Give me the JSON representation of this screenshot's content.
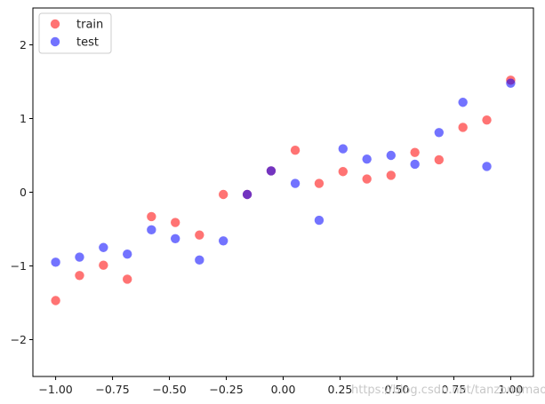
{
  "chart_data": {
    "type": "scatter",
    "title": "",
    "xlabel": "",
    "ylabel": "",
    "xlim": [
      -1.1,
      1.1
    ],
    "ylim": [
      -2.5,
      2.5
    ],
    "xticks": [
      -1.0,
      -0.75,
      -0.5,
      -0.25,
      0.0,
      0.25,
      0.5,
      0.75,
      1.0
    ],
    "xtick_labels": [
      "−1.00",
      "−0.75",
      "−0.50",
      "−0.25",
      "0.00",
      "0.25",
      "0.50",
      "0.75",
      "1.00"
    ],
    "yticks": [
      -2,
      -1,
      0,
      1,
      2
    ],
    "ytick_labels": [
      "−2",
      "−1",
      "0",
      "1",
      "2"
    ],
    "grid": false,
    "legend_position": "upper-left",
    "series": [
      {
        "name": "train",
        "color": "#ff0000",
        "alpha": 0.55,
        "x": [
          -1.0,
          -0.895,
          -0.79,
          -0.685,
          -0.579,
          -0.474,
          -0.368,
          -0.263,
          -0.158,
          -0.053,
          0.053,
          0.158,
          0.263,
          0.368,
          0.474,
          0.579,
          0.685,
          0.79,
          0.895,
          1.0
        ],
        "y": [
          -1.47,
          -1.13,
          -0.99,
          -1.18,
          -0.33,
          -0.41,
          -0.58,
          -0.03,
          -0.03,
          0.29,
          0.57,
          0.12,
          0.28,
          0.18,
          0.23,
          0.54,
          0.44,
          0.88,
          0.98,
          1.52
        ]
      },
      {
        "name": "test",
        "color": "#0000ff",
        "alpha": 0.55,
        "x": [
          -1.0,
          -0.895,
          -0.79,
          -0.685,
          -0.579,
          -0.474,
          -0.368,
          -0.263,
          -0.158,
          -0.053,
          0.053,
          0.158,
          0.263,
          0.368,
          0.474,
          0.579,
          0.685,
          0.79,
          0.895,
          1.0
        ],
        "y": [
          -0.95,
          -0.88,
          -0.75,
          -0.84,
          -0.51,
          -0.63,
          -0.92,
          -0.66,
          -0.03,
          0.29,
          0.12,
          -0.38,
          0.59,
          0.45,
          0.5,
          0.38,
          0.81,
          1.22,
          0.35,
          1.48
        ]
      }
    ],
    "watermark": "https://blog.csdn.net/tanzongmao"
  }
}
